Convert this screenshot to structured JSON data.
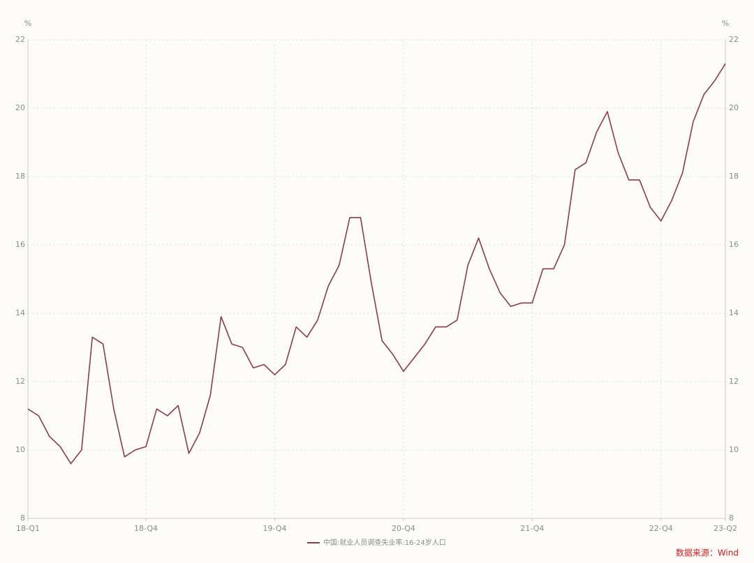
{
  "chart_data": {
    "type": "line",
    "y_unit": "%",
    "y2_unit": "%",
    "categories": [
      "18-Q1",
      null,
      null,
      null,
      null,
      null,
      null,
      null,
      null,
      null,
      null,
      "18-Q4",
      null,
      null,
      null,
      null,
      null,
      null,
      null,
      null,
      null,
      null,
      null,
      "19-Q4",
      null,
      null,
      null,
      null,
      null,
      null,
      null,
      null,
      null,
      null,
      null,
      "20-Q4",
      null,
      null,
      null,
      null,
      null,
      null,
      null,
      null,
      null,
      null,
      null,
      "21-Q4",
      null,
      null,
      null,
      null,
      null,
      null,
      null,
      null,
      null,
      null,
      null,
      "22-Q4",
      null,
      null,
      null,
      null,
      null,
      "23-Q2"
    ],
    "series": [
      {
        "name": "中国:就业人员调查失业率:16-24岁人口",
        "color": "#8b3a52",
        "values": [
          11.2,
          11.0,
          10.4,
          10.1,
          9.6,
          10.0,
          13.3,
          13.1,
          11.2,
          9.8,
          10.0,
          10.1,
          11.2,
          11.0,
          11.3,
          9.9,
          10.5,
          11.6,
          13.9,
          13.1,
          13.0,
          12.4,
          12.5,
          12.2,
          12.5,
          13.6,
          13.3,
          13.8,
          14.8,
          15.4,
          16.8,
          16.8,
          14.9,
          13.2,
          12.8,
          12.3,
          12.7,
          13.1,
          13.6,
          13.6,
          13.8,
          15.4,
          16.2,
          15.3,
          14.6,
          14.2,
          14.3,
          14.3,
          15.3,
          15.3,
          16.0,
          18.2,
          18.4,
          19.3,
          19.9,
          18.7,
          17.9,
          17.9,
          17.1,
          16.7,
          17.3,
          18.1,
          19.6,
          20.4,
          20.8,
          21.3
        ]
      }
    ],
    "ylim": [
      8,
      22
    ],
    "yticks": [
      8,
      10,
      12,
      14,
      16,
      18,
      20,
      22
    ],
    "y2lim": [
      8,
      22
    ],
    "y2ticks": [
      8,
      10,
      12,
      14,
      16,
      18,
      20,
      22
    ],
    "grid": true,
    "legend": "bottom",
    "source": "数据来源：Wind"
  }
}
